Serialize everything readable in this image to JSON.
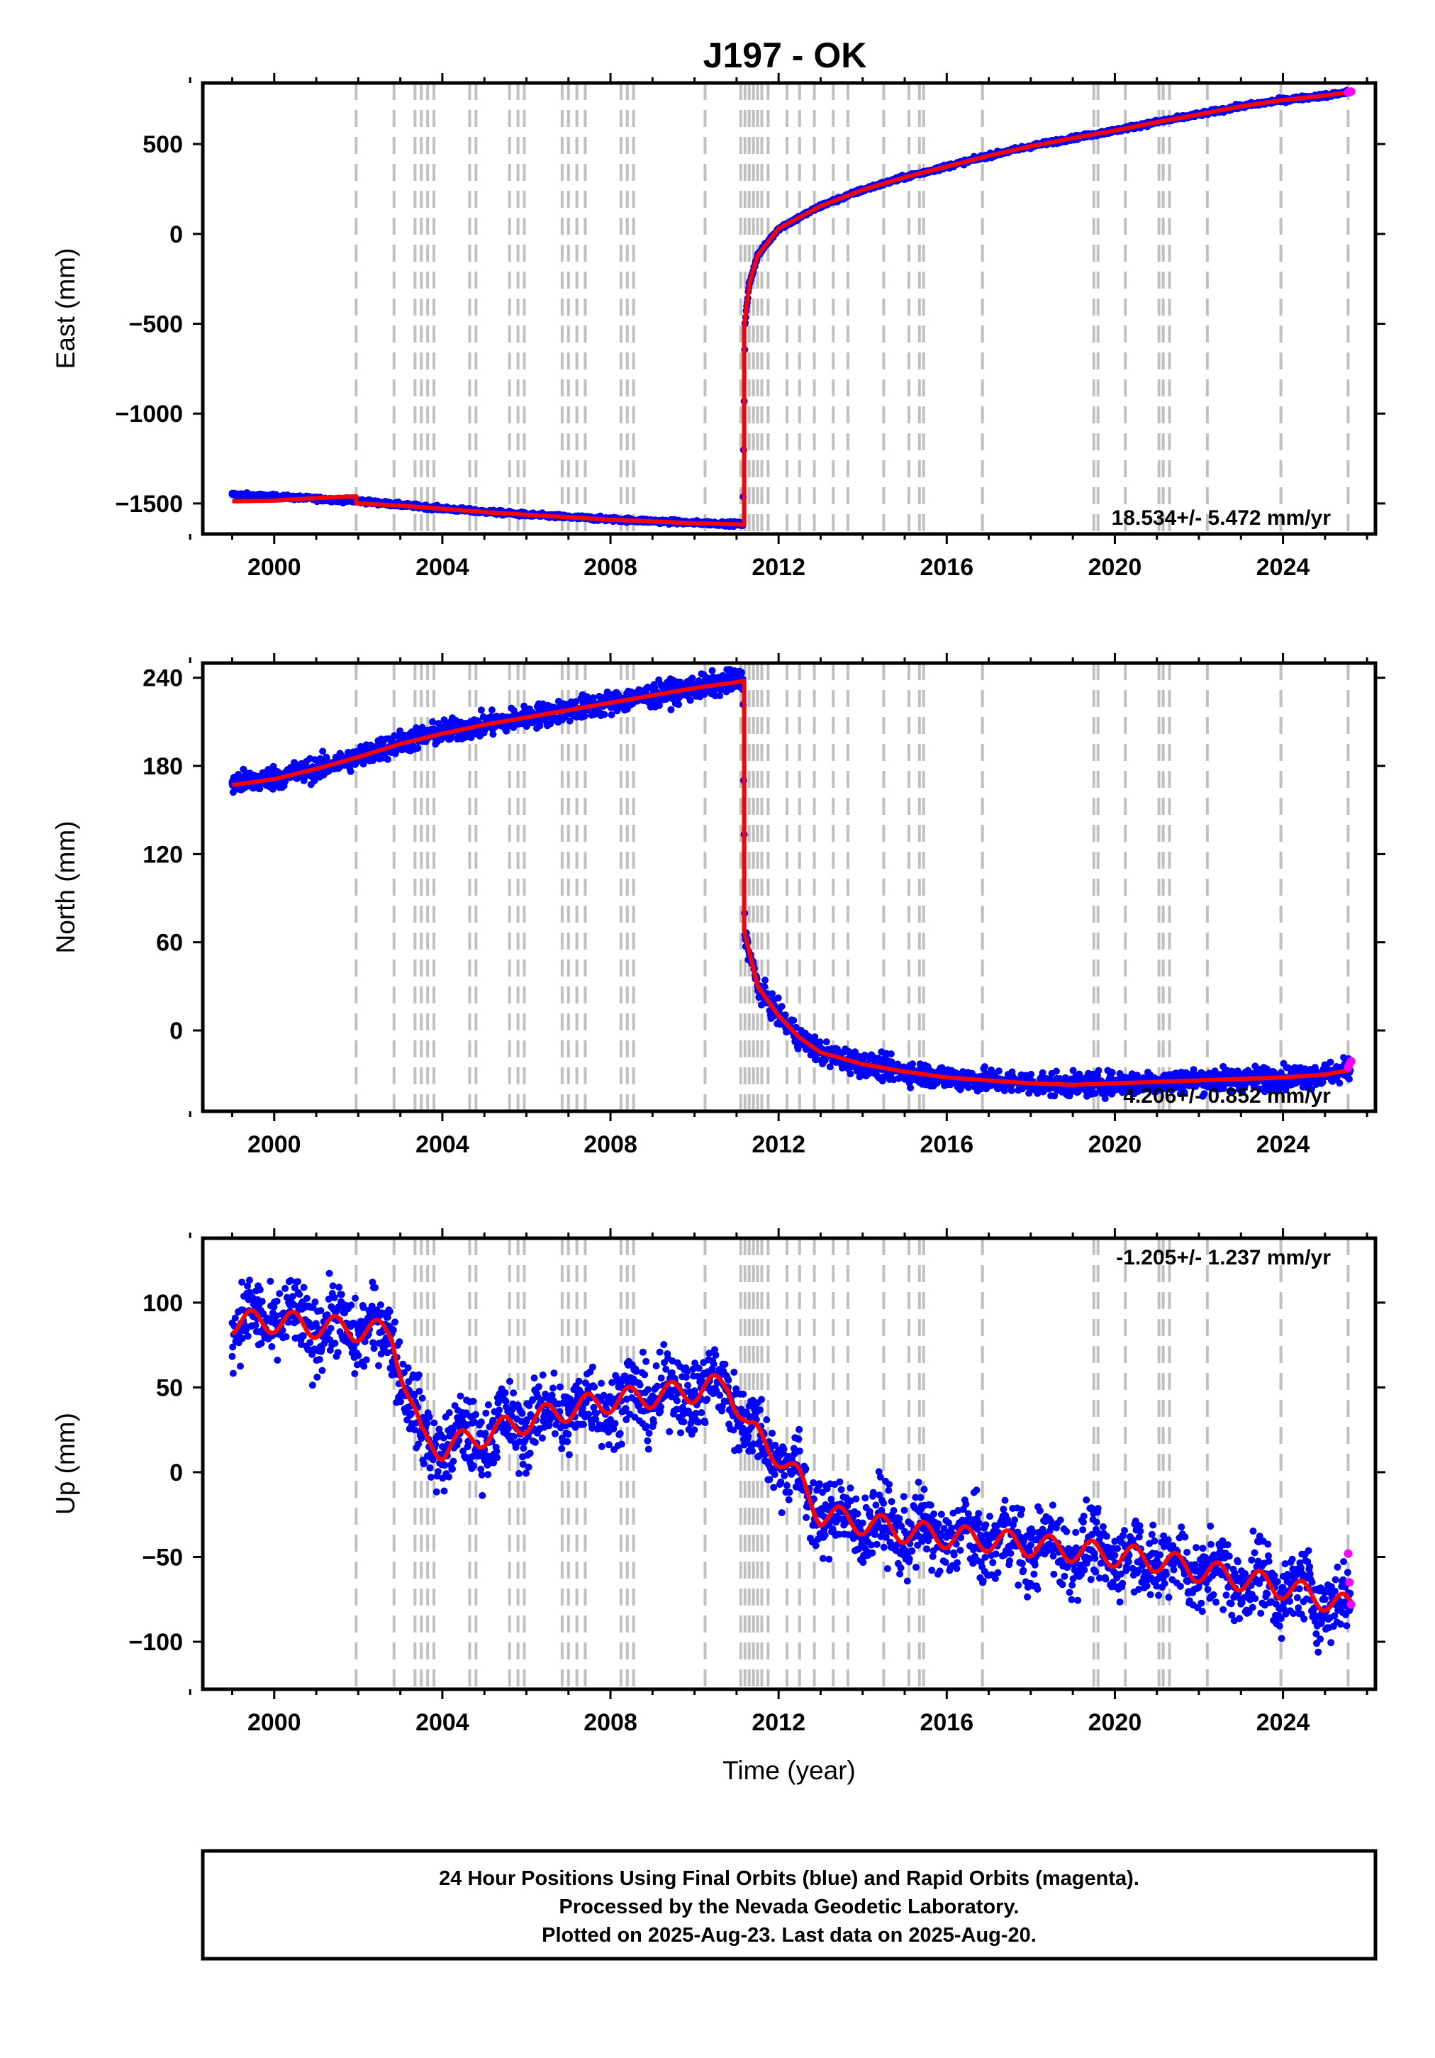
{
  "title": "J197 - OK",
  "footer": {
    "line1": "24 Hour Positions Using Final Orbits (blue) and Rapid Orbits (magenta).",
    "line2": "Processed by the Nevada Geodetic Laboratory.",
    "line3": "Plotted on 2025-Aug-23. Last data on 2025-Aug-20."
  },
  "colors": {
    "final_orbits": "#0000ff",
    "rapid_orbits": "#ff00ff",
    "model": "#ff0000",
    "event_lines": "#c0c0c0"
  },
  "chart_data": [
    {
      "type": "scatter",
      "ylabel": "East (mm)",
      "xlabel": "",
      "xlim": [
        1998.3,
        2026.2
      ],
      "ylim": [
        -1670,
        840
      ],
      "xticks": [
        2000,
        2004,
        2008,
        2012,
        2016,
        2020,
        2024
      ],
      "yticks": [
        -1500,
        -1000,
        -500,
        0,
        500
      ],
      "rate_label": "18.534+/- 5.472 mm/yr",
      "grid": false,
      "series": [
        {
          "role": "final",
          "x": [
            1999.0,
            2000.0,
            2001.0,
            2002.0,
            2003.0,
            2004.0,
            2005.0,
            2006.0,
            2007.0,
            2008.0,
            2009.0,
            2010.0,
            2011.0,
            2011.15,
            2011.2,
            2011.3,
            2011.5,
            2012.0,
            2013.0,
            2014.0,
            2015.0,
            2016.0,
            2017.0,
            2018.0,
            2019.0,
            2020.0,
            2021.0,
            2022.0,
            2023.0,
            2024.0,
            2025.0,
            2025.6
          ],
          "y": [
            -1450,
            -1462,
            -1474,
            -1486,
            -1508,
            -1528,
            -1546,
            -1562,
            -1576,
            -1588,
            -1598,
            -1608,
            -1614,
            -1618,
            -500,
            -280,
            -120,
            30,
            155,
            245,
            315,
            375,
            435,
            488,
            533,
            575,
            622,
            665,
            710,
            745,
            770,
            790
          ]
        },
        {
          "role": "rapid",
          "x": [
            2025.55,
            2025.58,
            2025.62
          ],
          "y": [
            788,
            790,
            792
          ]
        },
        {
          "role": "model",
          "x": [
            1999.0,
            2000.0,
            2001.0,
            2001.95,
            2001.95,
            2003.0,
            2004.0,
            2005.0,
            2006.0,
            2007.0,
            2008.0,
            2009.0,
            2010.0,
            2011.0,
            2011.18,
            2011.18,
            2011.3,
            2011.5,
            2012.0,
            2013.0,
            2014.0,
            2015.0,
            2016.0,
            2017.0,
            2018.0,
            2019.0,
            2020.0,
            2021.0,
            2022.0,
            2023.0,
            2024.0,
            2025.0,
            2025.6
          ],
          "y": [
            -1488,
            -1484,
            -1470,
            -1460,
            -1500,
            -1512,
            -1530,
            -1548,
            -1563,
            -1577,
            -1590,
            -1600,
            -1610,
            -1616,
            -1618,
            -520,
            -280,
            -120,
            30,
            155,
            245,
            315,
            375,
            435,
            488,
            533,
            575,
            622,
            665,
            710,
            745,
            770,
            790
          ]
        }
      ]
    },
    {
      "type": "scatter",
      "ylabel": "North (mm)",
      "xlabel": "",
      "xlim": [
        1998.3,
        2026.2
      ],
      "ylim": [
        -55,
        250
      ],
      "xticks": [
        2000,
        2004,
        2008,
        2012,
        2016,
        2020,
        2024
      ],
      "yticks": [
        0,
        60,
        120,
        180,
        240
      ],
      "rate_label": "4.206+/- 0.852 mm/yr",
      "grid": false,
      "series": [
        {
          "role": "final",
          "x": [
            1999.0,
            2000.0,
            2001.0,
            2002.0,
            2003.0,
            2004.0,
            2005.0,
            2006.0,
            2007.0,
            2008.0,
            2009.0,
            2010.0,
            2011.0,
            2011.15,
            2011.2,
            2011.5,
            2012.0,
            2012.5,
            2013.0,
            2014.0,
            2015.0,
            2016.0,
            2017.0,
            2018.0,
            2019.0,
            2020.0,
            2021.0,
            2022.0,
            2023.0,
            2024.0,
            2025.0,
            2025.6
          ],
          "y": [
            168,
            172,
            178,
            186,
            196,
            203,
            208,
            213,
            218,
            223,
            228,
            233,
            238,
            239,
            65,
            30,
            10,
            -5,
            -15,
            -23,
            -28,
            -32,
            -34,
            -36,
            -37,
            -36,
            -35,
            -34,
            -33,
            -32,
            -30,
            -27
          ]
        },
        {
          "role": "rapid",
          "x": [
            2025.55,
            2025.58,
            2025.62
          ],
          "y": [
            -25,
            -23,
            -21
          ]
        },
        {
          "role": "model",
          "x": [
            1999.0,
            2000.0,
            2001.0,
            2002.0,
            2003.0,
            2004.0,
            2005.0,
            2006.0,
            2007.0,
            2008.0,
            2009.0,
            2010.0,
            2011.0,
            2011.18,
            2011.18,
            2011.5,
            2012.0,
            2012.5,
            2013.0,
            2014.0,
            2015.0,
            2016.0,
            2017.0,
            2018.0,
            2019.0,
            2020.0,
            2021.0,
            2022.0,
            2023.0,
            2024.0,
            2025.0,
            2025.6
          ],
          "y": [
            167,
            171,
            178,
            186,
            195,
            202,
            208,
            213,
            218,
            223,
            228,
            233,
            237,
            238,
            68,
            30,
            10,
            -5,
            -15,
            -23,
            -28,
            -32,
            -34,
            -36,
            -37,
            -36,
            -35,
            -34,
            -33,
            -32,
            -30,
            -27
          ]
        }
      ]
    },
    {
      "type": "scatter",
      "ylabel": "Up (mm)",
      "xlabel": "Time (year)",
      "xlim": [
        1998.3,
        2026.2
      ],
      "ylim": [
        -128,
        138
      ],
      "xticks": [
        2000,
        2004,
        2008,
        2012,
        2016,
        2020,
        2024
      ],
      "yticks": [
        -100,
        -50,
        0,
        50,
        100
      ],
      "rate_label": "-1.205+/- 1.237 mm/yr",
      "grid": false,
      "series": [
        {
          "role": "final",
          "x": [
            1999.0,
            2000.0,
            2001.0,
            2002.0,
            2002.8,
            2003.2,
            2003.5,
            2004.0,
            2005.0,
            2006.0,
            2007.0,
            2008.0,
            2009.0,
            2010.0,
            2010.8,
            2011.3,
            2012.0,
            2012.5,
            2013.0,
            2014.0,
            2015.0,
            2016.0,
            2017.0,
            2018.0,
            2019.0,
            2020.0,
            2021.0,
            2022.0,
            2023.0,
            2024.0,
            2025.0,
            2025.6
          ],
          "y": [
            88,
            90,
            86,
            84,
            82,
            45,
            20,
            15,
            22,
            30,
            37,
            42,
            45,
            48,
            50,
            25,
            10,
            -5,
            -25,
            -30,
            -35,
            -38,
            -40,
            -43,
            -46,
            -49,
            -52,
            -58,
            -63,
            -68,
            -75,
            -80
          ]
        },
        {
          "role": "rapid",
          "x": [
            2025.55,
            2025.58,
            2025.62
          ],
          "y": [
            -48,
            -65,
            -78
          ]
        },
        {
          "role": "model",
          "x": [
            1999.0,
            2000.0,
            2001.0,
            2002.0,
            2002.8,
            2003.2,
            2003.5,
            2004.0,
            2005.0,
            2006.0,
            2007.0,
            2008.0,
            2009.0,
            2010.0,
            2010.8,
            2011.3,
            2012.0,
            2012.5,
            2013.0,
            2014.0,
            2015.0,
            2016.0,
            2017.0,
            2018.0,
            2019.0,
            2020.0,
            2021.0,
            2022.0,
            2023.0,
            2024.0,
            2025.0,
            2025.6
          ],
          "y": [
            88,
            89,
            86,
            84,
            82,
            44,
            20,
            14,
            22,
            30,
            37,
            42,
            45,
            48,
            52,
            25,
            10,
            -5,
            -25,
            -30,
            -35,
            -38,
            -40,
            -43,
            -46,
            -49,
            -52,
            -58,
            -63,
            -68,
            -75,
            -80
          ]
        }
      ]
    }
  ],
  "event_lines": [
    2001.95,
    2002.85,
    2003.35,
    2003.5,
    2003.65,
    2003.8,
    2004.65,
    2004.8,
    2005.6,
    2005.8,
    2005.95,
    2006.85,
    2007.0,
    2007.2,
    2007.4,
    2008.25,
    2008.4,
    2008.55,
    2010.25,
    2011.1,
    2011.2,
    2011.3,
    2011.4,
    2011.5,
    2011.6,
    2011.75,
    2012.2,
    2012.5,
    2012.85,
    2013.3,
    2013.65,
    2014.5,
    2015.1,
    2015.35,
    2015.45,
    2016.85,
    2019.5,
    2019.6,
    2020.25,
    2021.05,
    2021.15,
    2021.3,
    2022.2,
    2023.95,
    2025.55
  ]
}
